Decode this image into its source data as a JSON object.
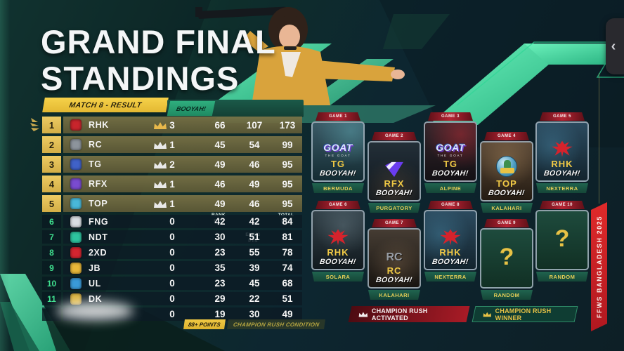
{
  "title": {
    "line1": "GRAND FINAL",
    "line2": "STANDINGS"
  },
  "match_badge": "MATCH 8 - RESULT",
  "table": {
    "booyah_header": "BOOYAH!",
    "columns": [
      {
        "l1": "RANK",
        "l2": "PTS"
      },
      {
        "l1": "ELIMS",
        "l2": "PTS"
      },
      {
        "l1": "TOTAL",
        "l2": "PTS"
      }
    ],
    "rows": [
      {
        "rank": "1",
        "team": "RHK",
        "crown_color": "#e8b84b",
        "logo_color": "#c8252c",
        "booyah": "3",
        "rank_pts": "66",
        "elims_pts": "107",
        "total_pts": "173"
      },
      {
        "rank": "2",
        "team": "RC",
        "crown_color": "#e9e9e9",
        "logo_color": "#8d949c",
        "booyah": "1",
        "rank_pts": "45",
        "elims_pts": "54",
        "total_pts": "99"
      },
      {
        "rank": "3",
        "team": "TG",
        "crown_color": "#e9e9e9",
        "logo_color": "#4062c8",
        "booyah": "2",
        "rank_pts": "49",
        "elims_pts": "46",
        "total_pts": "95"
      },
      {
        "rank": "4",
        "team": "RFX",
        "crown_color": "#e9e9e9",
        "logo_color": "#7a4bd0",
        "booyah": "1",
        "rank_pts": "46",
        "elims_pts": "49",
        "total_pts": "95"
      },
      {
        "rank": "5",
        "team": "TOP",
        "crown_color": "#e9e9e9",
        "logo_color": "#49b8d8",
        "booyah": "1",
        "rank_pts": "49",
        "elims_pts": "46",
        "total_pts": "95"
      },
      {
        "rank": "6",
        "team": "FNG",
        "logo_color": "#d8dde2",
        "booyah": "0",
        "rank_pts": "42",
        "elims_pts": "42",
        "total_pts": "84"
      },
      {
        "rank": "7",
        "team": "NDT",
        "logo_color": "#2ec4a0",
        "booyah": "0",
        "rank_pts": "30",
        "elims_pts": "51",
        "total_pts": "81"
      },
      {
        "rank": "8",
        "team": "2XD",
        "logo_color": "#d42530",
        "booyah": "0",
        "rank_pts": "23",
        "elims_pts": "55",
        "total_pts": "78"
      },
      {
        "rank": "9",
        "team": "JB",
        "logo_color": "#e8b83a",
        "booyah": "0",
        "rank_pts": "35",
        "elims_pts": "39",
        "total_pts": "74"
      },
      {
        "rank": "10",
        "team": "UL",
        "logo_color": "#3a9ad8",
        "booyah": "0",
        "rank_pts": "23",
        "elims_pts": "45",
        "total_pts": "68"
      },
      {
        "rank": "11",
        "team": "DK",
        "logo_color": "#d8b03a",
        "booyah": "0",
        "rank_pts": "29",
        "elims_pts": "22",
        "total_pts": "51"
      },
      {
        "rank": "",
        "team": "",
        "logo_color": "",
        "booyah": "0",
        "rank_pts": "19",
        "elims_pts": "30",
        "total_pts": "49"
      }
    ]
  },
  "footnote": {
    "badge": "88+ POINTS",
    "text": "CHAMPION RUSH CONDITION"
  },
  "cards": [
    {
      "game": "GAME 1",
      "team": "TG",
      "booyah": "BOOYAH!",
      "map": "BERMUDA",
      "logo_main": "GOAT",
      "logo_sub": "THE GOAT"
    },
    {
      "game": "GAME 2",
      "team": "RFX",
      "booyah": "BOOYAH!",
      "map": "PURGATORY"
    },
    {
      "game": "GAME 3",
      "team": "TG",
      "booyah": "BOOYAH!",
      "map": "ALPINE",
      "logo_main": "GOAT",
      "logo_sub": "THE GOAT"
    },
    {
      "game": "GAME 4",
      "team": "TOP",
      "booyah": "BOOYAH!",
      "map": "KALAHARI"
    },
    {
      "game": "GAME 5",
      "team": "RHK",
      "booyah": "BOOYAH!",
      "map": "NEXTERRA"
    },
    {
      "game": "GAME 6",
      "team": "RHK",
      "booyah": "BOOYAH!",
      "map": "SOLARA"
    },
    {
      "game": "GAME 7",
      "team": "RC",
      "booyah": "BOOYAH!",
      "map": "KALAHARI",
      "logo_main": "RC"
    },
    {
      "game": "GAME 8",
      "team": "RHK",
      "booyah": "BOOYAH!",
      "map": "NEXTERRA"
    },
    {
      "game": "GAME 9",
      "question": "?",
      "map": "RANDOM"
    },
    {
      "game": "GAME 10",
      "question": "?",
      "map": "RANDOM"
    }
  ],
  "legend": {
    "activated": "CHAMPION RUSH ACTIVATED",
    "winner": "CHAMPION RUSH WINNER"
  },
  "ribbon": "FFWS BANGLADESH 2025",
  "nav": {
    "collapse_glyph": "‹"
  },
  "colors": {
    "accent_green": "#3ce6a4",
    "gold": "#e8c245",
    "banner_red": "#b52433",
    "footer_green": "#1c5a47"
  }
}
